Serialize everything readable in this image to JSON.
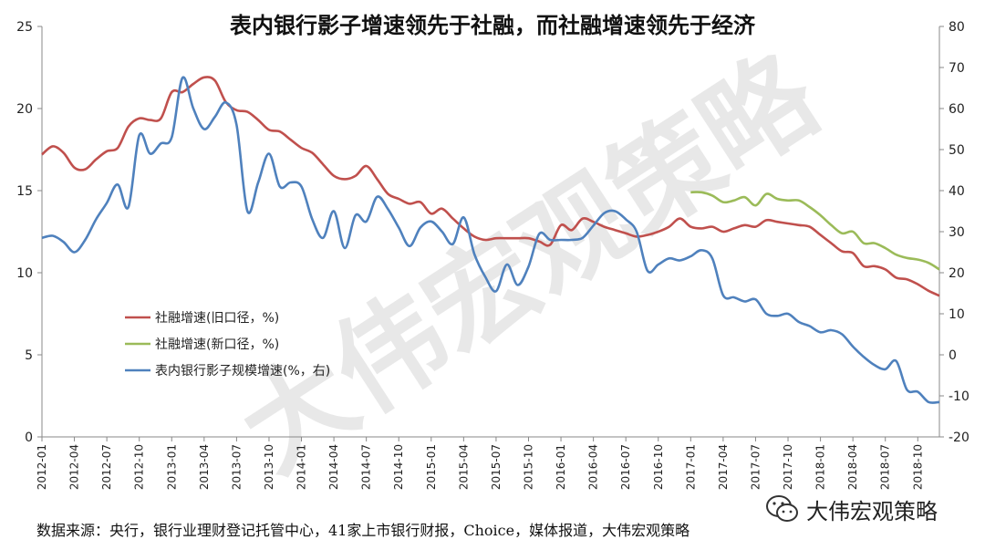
{
  "chart_data": {
    "type": "line",
    "title": "表内银行影子增速领先于社融，而社融增速领先于经济",
    "x_ticks": [
      "2012-01",
      "2012-04",
      "2012-07",
      "2012-10",
      "2013-01",
      "2013-04",
      "2013-07",
      "2013-10",
      "2014-01",
      "2014-04",
      "2014-07",
      "2014-10",
      "2015-01",
      "2015-04",
      "2015-07",
      "2015-10",
      "2016-01",
      "2016-04",
      "2016-07",
      "2016-10",
      "2017-01",
      "2017-04",
      "2017-07",
      "2017-10",
      "2018-01",
      "2018-04",
      "2018-07",
      "2018-10"
    ],
    "y_left_ticks": [
      "0",
      "5",
      "10",
      "15",
      "20",
      "25"
    ],
    "y_right_ticks": [
      "-20",
      "-10",
      "0",
      "10",
      "20",
      "30",
      "40",
      "50",
      "60",
      "70",
      "80"
    ],
    "ylim_left": [
      0,
      25
    ],
    "ylim_right": [
      -20,
      80
    ],
    "series": [
      {
        "name": "社融增速(旧口径，%)",
        "color": "#c0504d",
        "axis": "left",
        "points": [
          [
            "2012-01",
            17.2
          ],
          [
            "2012-02",
            17.7
          ],
          [
            "2012-03",
            17.3
          ],
          [
            "2012-04",
            16.4
          ],
          [
            "2012-05",
            16.3
          ],
          [
            "2012-06",
            16.9
          ],
          [
            "2012-07",
            17.4
          ],
          [
            "2012-08",
            17.6
          ],
          [
            "2012-09",
            18.9
          ],
          [
            "2012-10",
            19.4
          ],
          [
            "2012-11",
            19.3
          ],
          [
            "2012-12",
            19.4
          ],
          [
            "2013-01",
            21.0
          ],
          [
            "2013-02",
            21.0
          ],
          [
            "2013-03",
            21.5
          ],
          [
            "2013-04",
            21.9
          ],
          [
            "2013-05",
            21.7
          ],
          [
            "2013-06",
            20.4
          ],
          [
            "2013-07",
            19.9
          ],
          [
            "2013-08",
            19.8
          ],
          [
            "2013-09",
            19.3
          ],
          [
            "2013-10",
            18.7
          ],
          [
            "2013-11",
            18.6
          ],
          [
            "2013-12",
            18.1
          ],
          [
            "2014-01",
            17.6
          ],
          [
            "2014-02",
            17.3
          ],
          [
            "2014-03",
            16.6
          ],
          [
            "2014-04",
            15.9
          ],
          [
            "2014-05",
            15.7
          ],
          [
            "2014-06",
            15.9
          ],
          [
            "2014-07",
            16.5
          ],
          [
            "2014-08",
            15.7
          ],
          [
            "2014-09",
            14.8
          ],
          [
            "2014-10",
            14.5
          ],
          [
            "2014-11",
            14.2
          ],
          [
            "2014-12",
            14.3
          ],
          [
            "2015-01",
            13.6
          ],
          [
            "2015-02",
            13.9
          ],
          [
            "2015-03",
            13.3
          ],
          [
            "2015-04",
            12.7
          ],
          [
            "2015-05",
            12.2
          ],
          [
            "2015-06",
            12.0
          ],
          [
            "2015-07",
            12.1
          ],
          [
            "2015-08",
            12.1
          ],
          [
            "2015-09",
            12.1
          ],
          [
            "2015-10",
            12.1
          ],
          [
            "2015-11",
            11.9
          ],
          [
            "2015-12",
            11.7
          ],
          [
            "2016-01",
            12.9
          ],
          [
            "2016-02",
            12.6
          ],
          [
            "2016-03",
            13.3
          ],
          [
            "2016-04",
            13.1
          ],
          [
            "2016-05",
            12.8
          ],
          [
            "2016-06",
            12.6
          ],
          [
            "2016-07",
            12.4
          ],
          [
            "2016-08",
            12.2
          ],
          [
            "2016-09",
            12.3
          ],
          [
            "2016-10",
            12.5
          ],
          [
            "2016-11",
            12.8
          ],
          [
            "2016-12",
            13.3
          ],
          [
            "2017-01",
            12.8
          ],
          [
            "2017-02",
            12.7
          ],
          [
            "2017-03",
            12.8
          ],
          [
            "2017-04",
            12.5
          ],
          [
            "2017-05",
            12.7
          ],
          [
            "2017-06",
            12.9
          ],
          [
            "2017-07",
            12.8
          ],
          [
            "2017-08",
            13.2
          ],
          [
            "2017-09",
            13.1
          ],
          [
            "2017-10",
            13.0
          ],
          [
            "2017-11",
            12.9
          ],
          [
            "2017-12",
            12.8
          ],
          [
            "2018-01",
            12.3
          ],
          [
            "2018-02",
            11.8
          ],
          [
            "2018-03",
            11.3
          ],
          [
            "2018-04",
            11.2
          ],
          [
            "2018-05",
            10.4
          ],
          [
            "2018-06",
            10.4
          ],
          [
            "2018-07",
            10.2
          ],
          [
            "2018-08",
            9.7
          ],
          [
            "2018-09",
            9.6
          ],
          [
            "2018-10",
            9.3
          ],
          [
            "2018-11",
            8.9
          ],
          [
            "2018-12",
            8.6
          ]
        ]
      },
      {
        "name": "社融增速(新口径，%)",
        "color": "#9bbb59",
        "axis": "left",
        "points": [
          [
            "2017-01",
            14.9
          ],
          [
            "2017-02",
            14.9
          ],
          [
            "2017-03",
            14.7
          ],
          [
            "2017-04",
            14.3
          ],
          [
            "2017-05",
            14.4
          ],
          [
            "2017-06",
            14.6
          ],
          [
            "2017-07",
            14.1
          ],
          [
            "2017-08",
            14.8
          ],
          [
            "2017-09",
            14.5
          ],
          [
            "2017-10",
            14.4
          ],
          [
            "2017-11",
            14.4
          ],
          [
            "2017-12",
            14.0
          ],
          [
            "2018-01",
            13.5
          ],
          [
            "2018-02",
            12.9
          ],
          [
            "2018-03",
            12.4
          ],
          [
            "2018-04",
            12.5
          ],
          [
            "2018-05",
            11.8
          ],
          [
            "2018-06",
            11.8
          ],
          [
            "2018-07",
            11.5
          ],
          [
            "2018-08",
            11.1
          ],
          [
            "2018-09",
            10.9
          ],
          [
            "2018-10",
            10.8
          ],
          [
            "2018-11",
            10.6
          ],
          [
            "2018-12",
            10.2
          ]
        ]
      },
      {
        "name": "表内银行影子规模增速(%，右)",
        "color": "#4f81bd",
        "axis": "right",
        "points": [
          [
            "2012-01",
            28.5
          ],
          [
            "2012-02",
            29.0
          ],
          [
            "2012-03",
            27.5
          ],
          [
            "2012-04",
            25.0
          ],
          [
            "2012-05",
            28.0
          ],
          [
            "2012-06",
            33.0
          ],
          [
            "2012-07",
            37.0
          ],
          [
            "2012-08",
            41.5
          ],
          [
            "2012-09",
            36.0
          ],
          [
            "2012-10",
            53.5
          ],
          [
            "2012-11",
            49.0
          ],
          [
            "2012-12",
            51.5
          ],
          [
            "2013-01",
            53.0
          ],
          [
            "2013-02",
            67.5
          ],
          [
            "2013-03",
            60.0
          ],
          [
            "2013-04",
            55.0
          ],
          [
            "2013-05",
            58.0
          ],
          [
            "2013-06",
            61.5
          ],
          [
            "2013-07",
            56.0
          ],
          [
            "2013-08",
            35.0
          ],
          [
            "2013-09",
            42.0
          ],
          [
            "2013-10",
            49.0
          ],
          [
            "2013-11",
            41.0
          ],
          [
            "2013-12",
            42.0
          ],
          [
            "2014-01",
            41.0
          ],
          [
            "2014-02",
            33.0
          ],
          [
            "2014-03",
            28.5
          ],
          [
            "2014-04",
            35.0
          ],
          [
            "2014-05",
            26.0
          ],
          [
            "2014-06",
            34.0
          ],
          [
            "2014-07",
            32.5
          ],
          [
            "2014-08",
            38.5
          ],
          [
            "2014-09",
            35.5
          ],
          [
            "2014-10",
            31.0
          ],
          [
            "2014-11",
            26.5
          ],
          [
            "2014-12",
            31.0
          ],
          [
            "2015-01",
            32.5
          ],
          [
            "2015-02",
            30.0
          ],
          [
            "2015-03",
            27.0
          ],
          [
            "2015-04",
            33.5
          ],
          [
            "2015-05",
            24.5
          ],
          [
            "2015-06",
            19.0
          ],
          [
            "2015-07",
            15.5
          ],
          [
            "2015-08",
            22.0
          ],
          [
            "2015-09",
            17.0
          ],
          [
            "2015-10",
            21.5
          ],
          [
            "2015-11",
            29.5
          ],
          [
            "2015-12",
            28.0
          ],
          [
            "2016-01",
            28.0
          ],
          [
            "2016-02",
            28.0
          ],
          [
            "2016-03",
            28.5
          ],
          [
            "2016-04",
            31.5
          ],
          [
            "2016-05",
            34.5
          ],
          [
            "2016-06",
            35.0
          ],
          [
            "2016-07",
            33.0
          ],
          [
            "2016-08",
            30.0
          ],
          [
            "2016-09",
            20.5
          ],
          [
            "2016-10",
            22.0
          ],
          [
            "2016-11",
            23.5
          ],
          [
            "2016-12",
            23.0
          ],
          [
            "2017-01",
            24.0
          ],
          [
            "2017-02",
            25.5
          ],
          [
            "2017-03",
            23.5
          ],
          [
            "2017-04",
            14.5
          ],
          [
            "2017-05",
            14.0
          ],
          [
            "2017-06",
            13.0
          ],
          [
            "2017-07",
            13.5
          ],
          [
            "2017-08",
            10.0
          ],
          [
            "2017-09",
            9.5
          ],
          [
            "2017-10",
            10.0
          ],
          [
            "2017-11",
            8.0
          ],
          [
            "2017-12",
            7.0
          ],
          [
            "2018-01",
            5.5
          ],
          [
            "2018-02",
            6.0
          ],
          [
            "2018-03",
            5.0
          ],
          [
            "2018-04",
            2.0
          ],
          [
            "2018-05",
            -0.5
          ],
          [
            "2018-06",
            -2.5
          ],
          [
            "2018-07",
            -3.5
          ],
          [
            "2018-08",
            -1.5
          ],
          [
            "2018-09",
            -8.5
          ],
          [
            "2018-10",
            -9.0
          ],
          [
            "2018-11",
            -11.5
          ],
          [
            "2018-12",
            -11.5
          ]
        ]
      }
    ],
    "legend_position": "middle-left",
    "grid": false
  },
  "footer": {
    "source": "数据来源：央行，银行业理财登记托管中心，41家上市银行财报，Choice，媒体报道，大伟宏观策略",
    "brand": "大伟宏观策略"
  },
  "watermark": "大伟宏观策略"
}
